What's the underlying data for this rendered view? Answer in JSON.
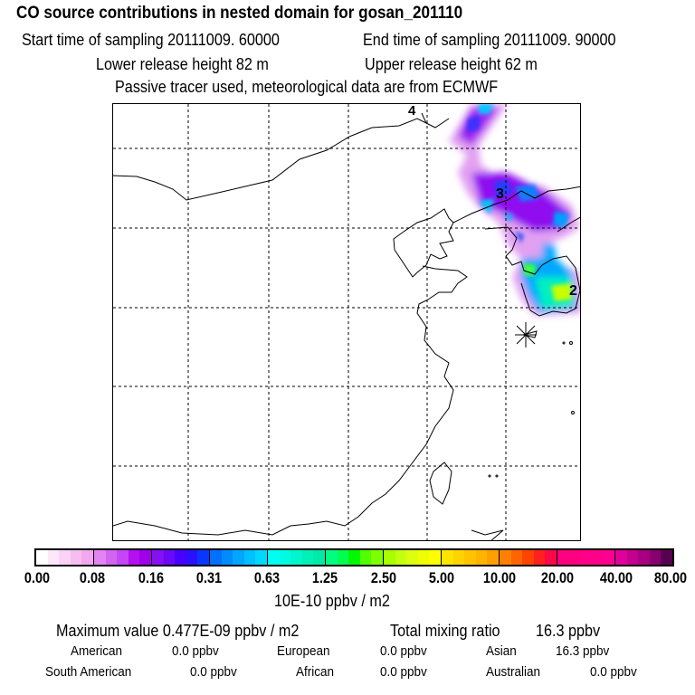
{
  "header": {
    "title": "CO  source contributions in nested domain for gosan_201110",
    "start_time": "Start time of sampling 20111009. 60000",
    "end_time": "End time of sampling 20111009. 90000",
    "lower_release": "Lower release height   82 m",
    "upper_release": "Upper release height   62 m",
    "tracer_note": "Passive tracer used, meteorological data are from ECMWF"
  },
  "map": {
    "markers": [
      {
        "label": "4"
      },
      {
        "label": "3"
      },
      {
        "label": "2"
      }
    ],
    "receptor_icon": "asterisk-star"
  },
  "colorbar": {
    "tick_labels": [
      "0.00",
      "0.08",
      "0.16",
      "0.31",
      "0.63",
      "1.25",
      "2.50",
      "5.00",
      "10.00",
      "20.00",
      "40.00",
      "80.00"
    ],
    "unit": "10E-10 ppbv / m2",
    "segments": [
      [
        "#ffffff",
        "#fde8fb",
        "#fad2f6",
        "#f6bdf2",
        "#f1a8ee"
      ],
      [
        "#e284f2",
        "#d264f2",
        "#c446f4",
        "#b410f2",
        "#a000ea"
      ],
      [
        "#8410f4",
        "#6a08f8",
        "#4a00ff",
        "#2a10ff",
        "#0838ff"
      ],
      [
        "#0070ff",
        "#008cff",
        "#00a6ff",
        "#00c0ff",
        "#00d8ff"
      ],
      [
        "#00fff0",
        "#00fce0",
        "#00f6cc",
        "#00f0b8",
        "#00eaa8"
      ],
      [
        "#00ff80",
        "#00ff50",
        "#00f800",
        "#50ff00",
        "#80ff00"
      ],
      [
        "#a8ff00",
        "#c4ff10",
        "#dcff10",
        "#f0ff00",
        "#ffff00"
      ],
      [
        "#ffe400",
        "#ffd400",
        "#ffc400",
        "#ffb400",
        "#ffa000"
      ],
      [
        "#ff8000",
        "#ff6400",
        "#ff4400",
        "#ff2020",
        "#ff0848"
      ],
      [
        "#ff0080",
        "#ff0080",
        "#ff0088",
        "#ff0088",
        "#ff0090"
      ],
      [
        "#e0009c",
        "#c4008e",
        "#a80080",
        "#880070",
        "#580050"
      ]
    ]
  },
  "stats": {
    "max_label": "Maximum value  0.477E-09 ppbv / m2",
    "total_label": "Total mixing ratio",
    "total_value": "16.3 ppbv",
    "regions": [
      {
        "name": "American",
        "value": "0.0 ppbv"
      },
      {
        "name": "European",
        "value": "0.0 ppbv"
      },
      {
        "name": "Asian",
        "value": "16.3 ppbv"
      },
      {
        "name": "South American",
        "value": "0.0 ppbv"
      },
      {
        "name": "African",
        "value": "0.0 ppbv"
      },
      {
        "name": "Australian",
        "value": "0.0 ppbv"
      }
    ]
  }
}
